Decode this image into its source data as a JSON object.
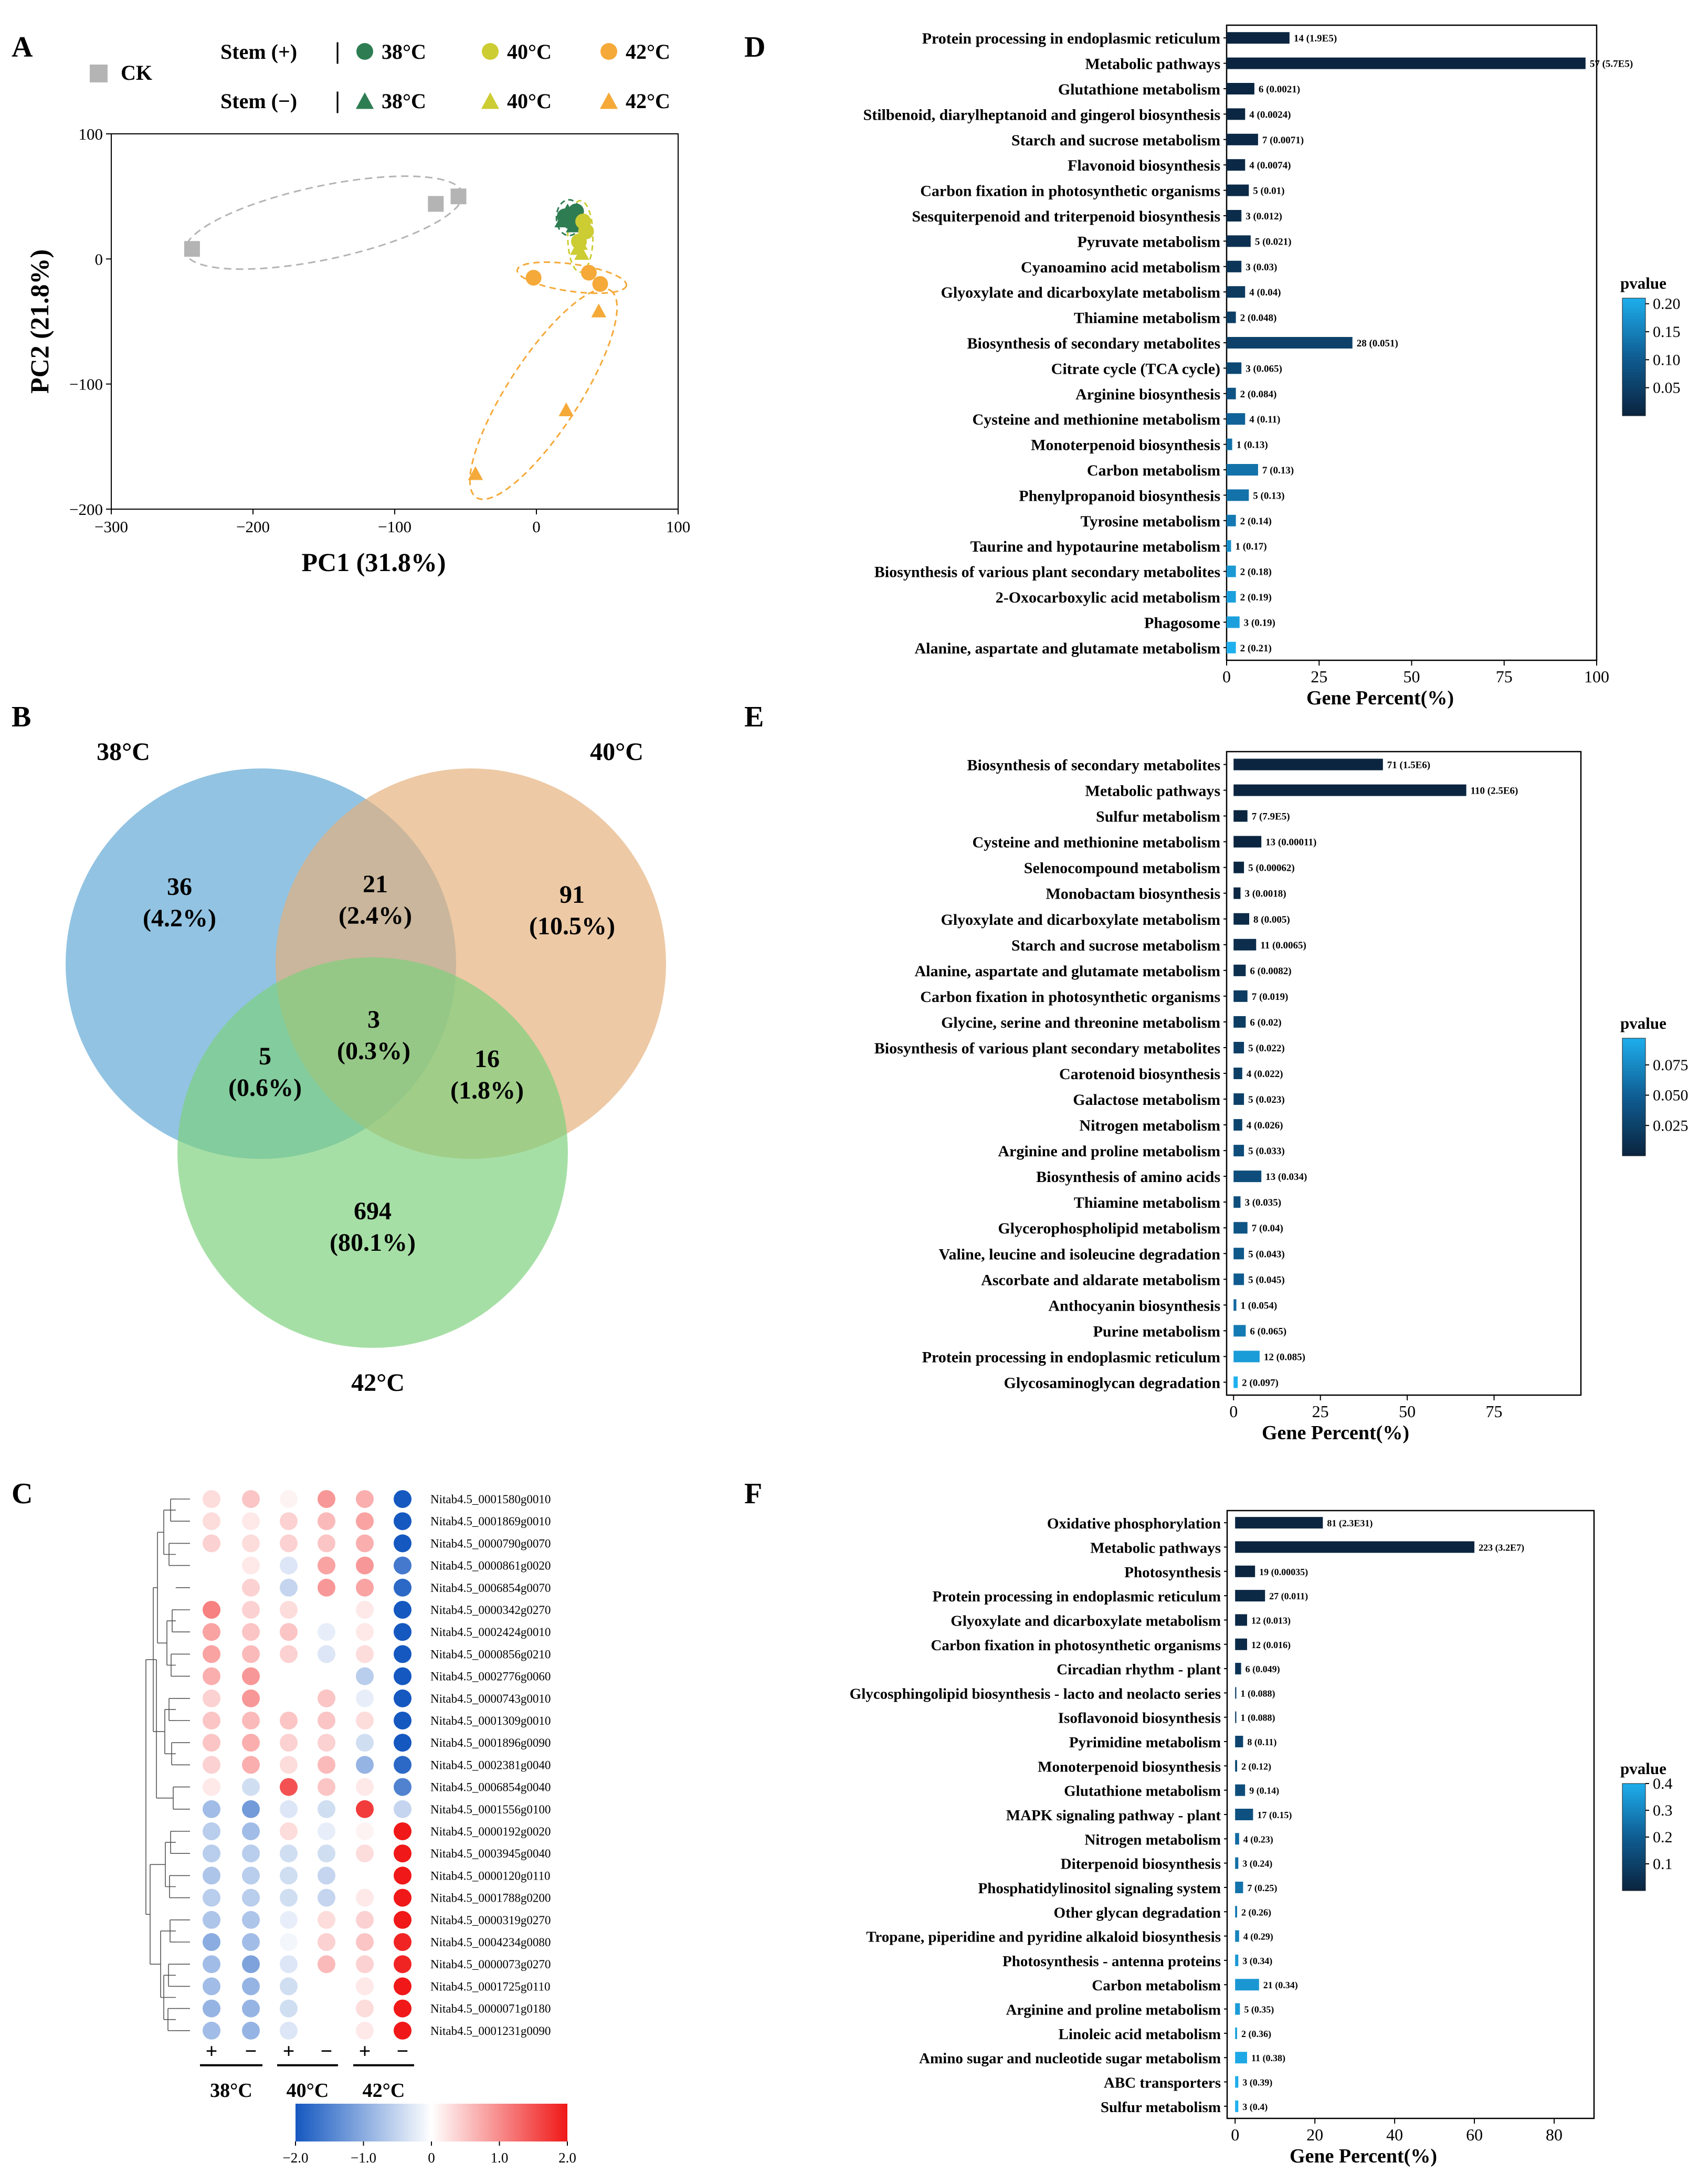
{
  "panel_labels": {
    "a": "A",
    "b": "B",
    "c": "C",
    "d": "D",
    "e": "E",
    "f": "F"
  },
  "chart_data": [
    {
      "id": "A",
      "type": "scatter",
      "title": "",
      "xlabel": "PC1 (31.8%)",
      "ylabel": "PC2 (21.8%)",
      "xlim": [
        -300,
        100
      ],
      "ylim": [
        -200,
        100
      ],
      "xticks": [
        -300,
        -200,
        -100,
        0,
        100
      ],
      "yticks": [
        -200,
        -100,
        0,
        100
      ],
      "legend": {
        "ck": "CK",
        "stem_plus": "Stem (+)",
        "stem_minus": "Stem (−)",
        "sep": "|",
        "t38": "38°C",
        "t40": "40°C",
        "t42": "42°C"
      },
      "colors": {
        "ck": "#b4b4b4",
        "c38": "#2e7d52",
        "c40": "#cccc33",
        "c42": "#f5a938"
      },
      "series": [
        {
          "name": "CK",
          "marker": "square",
          "color": "#b4b4b4",
          "points": [
            [
              -243,
              8
            ],
            [
              -71,
              44
            ],
            [
              -55,
              50
            ]
          ]
        },
        {
          "name": "Stem (+) 38°C",
          "marker": "circle",
          "color": "#2e7d52",
          "points": [
            [
              20,
              34
            ],
            [
              24,
              30
            ],
            [
              28,
              38
            ]
          ]
        },
        {
          "name": "Stem (−) 38°C",
          "marker": "triangle",
          "color": "#2e7d52",
          "points": [
            [
              18,
              30
            ],
            [
              26,
              26
            ],
            [
              22,
              38
            ]
          ]
        },
        {
          "name": "Stem (+) 40°C",
          "marker": "circle",
          "color": "#cccc33",
          "points": [
            [
              33,
              30
            ],
            [
              30,
              14
            ],
            [
              35,
              22
            ]
          ]
        },
        {
          "name": "Stem (−) 40°C",
          "marker": "triangle",
          "color": "#cccc33",
          "points": [
            [
              29,
              8
            ],
            [
              32,
              4
            ],
            [
              31,
              12
            ]
          ]
        },
        {
          "name": "Stem (+) 42°C",
          "marker": "circle",
          "color": "#f5a938",
          "points": [
            [
              -2,
              -15
            ],
            [
              37,
              -11
            ],
            [
              45,
              -20
            ]
          ]
        },
        {
          "name": "Stem (−) 42°C",
          "marker": "triangle",
          "color": "#f5a938",
          "points": [
            [
              44,
              -42
            ],
            [
              21,
              -121
            ],
            [
              -43,
              -172
            ]
          ]
        }
      ]
    },
    {
      "id": "B",
      "type": "venn",
      "sets": [
        "38°C",
        "40°C",
        "42°C"
      ],
      "regions": [
        {
          "name": "38 only",
          "count": "36",
          "pct": "(4.2%)"
        },
        {
          "name": "38 & 40",
          "count": "21",
          "pct": "(2.4%)"
        },
        {
          "name": "40 only",
          "count": "91",
          "pct": "(10.5%)"
        },
        {
          "name": "all three",
          "count": "3",
          "pct": "(0.3%)"
        },
        {
          "name": "38 & 42",
          "count": "5",
          "pct": "(0.6%)"
        },
        {
          "name": "40 & 42",
          "count": "16",
          "pct": "(1.8%)"
        },
        {
          "name": "42 only",
          "count": "694",
          "pct": "(80.1%)"
        }
      ],
      "colors": [
        "#5fa6d4",
        "#e5b07a",
        "#7cd07c"
      ]
    },
    {
      "id": "C",
      "type": "heatmap",
      "columns": [
        "+",
        "−",
        "+",
        "−",
        "+",
        "−"
      ],
      "column_groups": [
        "38°C",
        "40°C",
        "42°C"
      ],
      "scale": {
        "min": -2.0,
        "max": 2.0,
        "ticks": [
          "−2.0",
          "−1.0",
          "0",
          "1.0",
          "2.0"
        ],
        "low_color": "#1558c0",
        "mid_color": "#ffffff",
        "high_color": "#f01818"
      },
      "rows": [
        {
          "gene": "Nitab4.5_0001580g0010",
          "values": [
            0.3,
            0.5,
            0.1,
            0.9,
            0.7,
            -2.0
          ]
        },
        {
          "gene": "Nitab4.5_0001869g0010",
          "values": [
            0.3,
            0.2,
            0.4,
            0.6,
            0.8,
            -2.0
          ]
        },
        {
          "gene": "Nitab4.5_0000790g0070",
          "values": [
            0.4,
            0.3,
            0.4,
            0.5,
            0.7,
            -2.0
          ]
        },
        {
          "gene": "Nitab4.5_0000861g0020",
          "values": [
            0.0,
            0.2,
            -0.3,
            0.8,
            0.9,
            -1.6
          ]
        },
        {
          "gene": "Nitab4.5_0006854g0070",
          "values": [
            0.0,
            0.4,
            -0.5,
            0.9,
            0.8,
            -1.8
          ]
        },
        {
          "gene": "Nitab4.5_0000342g0270",
          "values": [
            1.1,
            0.4,
            0.3,
            0.0,
            0.2,
            -2.0
          ]
        },
        {
          "gene": "Nitab4.5_0002424g0010",
          "values": [
            0.8,
            0.5,
            0.5,
            -0.2,
            0.2,
            -2.0
          ]
        },
        {
          "gene": "Nitab4.5_0000856g0210",
          "values": [
            0.8,
            0.6,
            0.4,
            -0.3,
            0.3,
            -2.0
          ]
        },
        {
          "gene": "Nitab4.5_0002776g0060",
          "values": [
            0.7,
            0.9,
            0.0,
            0.0,
            -0.6,
            -2.0
          ]
        },
        {
          "gene": "Nitab4.5_0000743g0010",
          "values": [
            0.4,
            0.9,
            0.0,
            0.5,
            -0.2,
            -2.0
          ]
        },
        {
          "gene": "Nitab4.5_0001309g0010",
          "values": [
            0.5,
            0.6,
            0.5,
            0.5,
            0.3,
            -2.0
          ]
        },
        {
          "gene": "Nitab4.5_0001896g0090",
          "values": [
            0.5,
            0.7,
            0.4,
            0.4,
            -0.4,
            -2.0
          ]
        },
        {
          "gene": "Nitab4.5_0002381g0040",
          "values": [
            0.4,
            0.7,
            0.3,
            0.6,
            -0.9,
            -1.8
          ]
        },
        {
          "gene": "Nitab4.5_0006854g0040",
          "values": [
            0.2,
            -0.4,
            1.5,
            0.5,
            0.2,
            -1.5
          ]
        },
        {
          "gene": "Nitab4.5_0001556g0100",
          "values": [
            -0.8,
            -1.2,
            -0.3,
            -0.4,
            1.7,
            -0.5
          ]
        },
        {
          "gene": "Nitab4.5_0000192g0020",
          "values": [
            -0.6,
            -0.8,
            0.3,
            -0.2,
            0.1,
            2.0
          ]
        },
        {
          "gene": "Nitab4.5_0003945g0040",
          "values": [
            -0.6,
            -0.6,
            -0.4,
            -0.4,
            0.3,
            2.0
          ]
        },
        {
          "gene": "Nitab4.5_0000120g0110",
          "values": [
            -0.7,
            -0.6,
            -0.4,
            -0.5,
            0.0,
            2.0
          ]
        },
        {
          "gene": "Nitab4.5_0001788g0200",
          "values": [
            -0.6,
            -0.6,
            -0.4,
            -0.5,
            0.2,
            2.0
          ]
        },
        {
          "gene": "Nitab4.5_0000319g0270",
          "values": [
            -0.7,
            -0.7,
            -0.2,
            0.3,
            0.4,
            2.0
          ]
        },
        {
          "gene": "Nitab4.5_0004234g0080",
          "values": [
            -1.0,
            -0.8,
            -0.1,
            0.4,
            0.5,
            1.9
          ]
        },
        {
          "gene": "Nitab4.5_0000073g0270",
          "values": [
            -0.8,
            -1.1,
            -0.3,
            0.6,
            0.4,
            1.9
          ]
        },
        {
          "gene": "Nitab4.5_0001725g0110",
          "values": [
            -0.8,
            -0.9,
            -0.4,
            0.0,
            0.2,
            2.0
          ]
        },
        {
          "gene": "Nitab4.5_0000071g0180",
          "values": [
            -0.9,
            -0.9,
            -0.4,
            0.0,
            0.3,
            2.0
          ]
        },
        {
          "gene": "Nitab4.5_0001231g0090",
          "values": [
            -0.8,
            -0.9,
            -0.3,
            0.0,
            0.2,
            2.0
          ]
        }
      ]
    },
    {
      "id": "D",
      "type": "bar",
      "orientation": "horizontal",
      "xlabel": "Gene Percent(%)",
      "xlim": [
        0,
        100
      ],
      "xticks": [
        0,
        25,
        50,
        75,
        100
      ],
      "colorbar": {
        "title": "pvalue",
        "min": 0.0,
        "max": 0.21,
        "ticks": [
          0.05,
          0.1,
          0.15,
          0.2
        ],
        "tick_labels": [
          "0.05",
          "0.10",
          "0.15",
          "0.20"
        ]
      },
      "categories": [
        "Protein processing in endoplasmic reticulum",
        "Metabolic pathways",
        "Glutathione metabolism",
        "Stilbenoid, diarylheptanoid and gingerol biosynthesis",
        "Starch and sucrose metabolism",
        "Flavonoid biosynthesis",
        "Carbon fixation in photosynthetic organisms",
        "Sesquiterpenoid and triterpenoid biosynthesis",
        "Pyruvate metabolism",
        "Cyanoamino acid metabolism",
        "Glyoxylate and dicarboxylate metabolism",
        "Thiamine metabolism",
        "Biosynthesis of secondary metabolites",
        "Citrate cycle (TCA cycle)",
        "Arginine biosynthesis",
        "Cysteine and methionine metabolism",
        "Monoterpenoid biosynthesis",
        "Carbon metabolism",
        "Phenylpropanoid biosynthesis",
        "Tyrosine metabolism",
        "Taurine and hypotaurine metabolism",
        "Biosynthesis of various plant secondary metabolites",
        "2-Oxocarboxylic acid metabolism",
        "Phagosome",
        "Alanine, aspartate and glutamate metabolism"
      ],
      "values": [
        17,
        97,
        7.5,
        5,
        8.5,
        5,
        6,
        4,
        6.5,
        4,
        5,
        2.5,
        34,
        4,
        2.5,
        5,
        1.5,
        8.5,
        6,
        2.5,
        1.2,
        2.5,
        2.5,
        3.5,
        2.5
      ],
      "pvalues": [
        0.0,
        0.0,
        0.0021,
        0.0024,
        0.0071,
        0.0074,
        0.01,
        0.012,
        0.021,
        0.03,
        0.04,
        0.048,
        0.051,
        0.065,
        0.084,
        0.11,
        0.13,
        0.13,
        0.13,
        0.14,
        0.17,
        0.18,
        0.19,
        0.19,
        0.21
      ],
      "bar_labels": [
        "14 (1.9E5)",
        "57 (5.7E5)",
        "6 (0.0021)",
        "4 (0.0024)",
        "7 (0.0071)",
        "4 (0.0074)",
        "5 (0.01)",
        "3 (0.012)",
        "5 (0.021)",
        "3 (0.03)",
        "4 (0.04)",
        "2 (0.048)",
        "28 (0.051)",
        "3 (0.065)",
        "2 (0.084)",
        "4 (0.11)",
        "1 (0.13)",
        "7 (0.13)",
        "5 (0.13)",
        "2 (0.14)",
        "1 (0.17)",
        "2 (0.18)",
        "2 (0.19)",
        "3 (0.19)",
        "2 (0.21)"
      ]
    },
    {
      "id": "E",
      "type": "bar",
      "orientation": "horizontal",
      "xlabel": "Gene Percent(%)",
      "xlim": [
        -2,
        100
      ],
      "xticks": [
        0,
        25,
        50,
        75
      ],
      "colorbar": {
        "title": "pvalue",
        "min": 0.0,
        "max": 0.097,
        "ticks": [
          0.025,
          0.05,
          0.075
        ],
        "tick_labels": [
          "0.025",
          "0.050",
          "0.075"
        ]
      },
      "categories": [
        "Biosynthesis of secondary metabolites",
        "Metabolic pathways",
        "Sulfur metabolism",
        "Cysteine and methionine metabolism",
        "Selenocompound metabolism",
        "Monobactam biosynthesis",
        "Glyoxylate and dicarboxylate metabolism",
        "Starch and sucrose metabolism",
        "Alanine, aspartate and glutamate metabolism",
        "Carbon fixation in photosynthetic organisms",
        "Glycine, serine and threonine metabolism",
        "Biosynthesis of various plant secondary metabolites",
        "Carotenoid biosynthesis",
        "Galactose metabolism",
        "Nitrogen metabolism",
        "Arginine and proline metabolism",
        "Biosynthesis of amino acids",
        "Thiamine metabolism",
        "Glycerophospholipid metabolism",
        "Valine, leucine and isoleucine degradation",
        "Ascorbate and aldarate metabolism",
        "Anthocyanin biosynthesis",
        "Purine metabolism",
        "Protein processing in endoplasmic reticulum",
        "Glycosaminoglycan degradation"
      ],
      "values": [
        43,
        67,
        4,
        8,
        3,
        2,
        4.5,
        6.5,
        3.5,
        4,
        3.5,
        3,
        2.5,
        3,
        2.5,
        3,
        8,
        2,
        4,
        3,
        3,
        0.8,
        3.5,
        7.5,
        1.2
      ],
      "pvalues": [
        0.0,
        0.0,
        0.0,
        0.00011,
        0.00062,
        0.0018,
        0.005,
        0.0065,
        0.0082,
        0.019,
        0.02,
        0.022,
        0.022,
        0.023,
        0.026,
        0.033,
        0.034,
        0.035,
        0.04,
        0.043,
        0.045,
        0.054,
        0.065,
        0.085,
        0.097
      ],
      "bar_labels": [
        "71 (1.5E6)",
        "110 (2.5E6)",
        "7 (7.9E5)",
        "13 (0.00011)",
        "5 (0.00062)",
        "3 (0.0018)",
        "8 (0.005)",
        "11 (0.0065)",
        "6 (0.0082)",
        "7 (0.019)",
        "6 (0.02)",
        "5 (0.022)",
        "4 (0.022)",
        "5 (0.023)",
        "4 (0.026)",
        "5 (0.033)",
        "13 (0.034)",
        "3 (0.035)",
        "7 (0.04)",
        "5 (0.043)",
        "5 (0.045)",
        "1 (0.054)",
        "6 (0.065)",
        "12 (0.085)",
        "2 (0.097)"
      ]
    },
    {
      "id": "F",
      "type": "bar",
      "orientation": "horizontal",
      "xlabel": "Gene Percent(%)",
      "xlim": [
        -2,
        90
      ],
      "xticks": [
        0,
        20,
        40,
        60,
        80
      ],
      "colorbar": {
        "title": "pvalue",
        "min": 0.0,
        "max": 0.4,
        "ticks": [
          0.1,
          0.2,
          0.3,
          0.4
        ],
        "tick_labels": [
          "0.1",
          "0.2",
          "0.3",
          "0.4"
        ]
      },
      "categories": [
        "Oxidative phosphorylation",
        "Metabolic pathways",
        "Photosynthesis",
        "Protein processing in endoplasmic reticulum",
        "Glyoxylate and dicarboxylate metabolism",
        "Carbon fixation in photosynthetic organisms",
        "Circadian rhythm - plant",
        "Glycosphingolipid biosynthesis - lacto and neolacto series",
        "Isoflavonoid biosynthesis",
        "Pyrimidine metabolism",
        "Monoterpenoid biosynthesis",
        "Glutathione metabolism",
        "MAPK signaling pathway - plant",
        "Nitrogen metabolism",
        "Diterpenoid biosynthesis",
        "Phosphatidylinositol signaling system",
        "Other glycan degradation",
        "Tropane, piperidine and pyridine alkaloid biosynthesis",
        "Photosynthesis - antenna proteins",
        "Carbon metabolism",
        "Arginine and proline metabolism",
        "Linoleic acid metabolism",
        "Amino sugar and nucleotide sugar metabolism",
        "ABC transporters",
        "Sulfur metabolism"
      ],
      "values": [
        22,
        60,
        5,
        7.5,
        3,
        3,
        1.5,
        0.3,
        0.3,
        2,
        0.5,
        2.5,
        4.5,
        1,
        0.8,
        2,
        0.5,
        1,
        0.8,
        6,
        1.2,
        0.5,
        3,
        0.8,
        0.8
      ],
      "pvalues": [
        0.0,
        0.0,
        0.00035,
        0.011,
        0.013,
        0.016,
        0.049,
        0.088,
        0.088,
        0.11,
        0.12,
        0.14,
        0.15,
        0.23,
        0.24,
        0.25,
        0.26,
        0.29,
        0.34,
        0.34,
        0.35,
        0.36,
        0.38,
        0.39,
        0.4
      ],
      "bar_labels": [
        "81 (2.3E31)",
        "223 (3.2E7)",
        "19 (0.00035)",
        "27 (0.011)",
        "12 (0.013)",
        "12 (0.016)",
        "6 (0.049)",
        "1 (0.088)",
        "1 (0.088)",
        "8 (0.11)",
        "2 (0.12)",
        "9 (0.14)",
        "17 (0.15)",
        "4 (0.23)",
        "3 (0.24)",
        "7 (0.25)",
        "2 (0.26)",
        "4 (0.29)",
        "3 (0.34)",
        "21 (0.34)",
        "5 (0.35)",
        "2 (0.36)",
        "11 (0.38)",
        "3 (0.39)",
        "3 (0.4)"
      ]
    }
  ]
}
